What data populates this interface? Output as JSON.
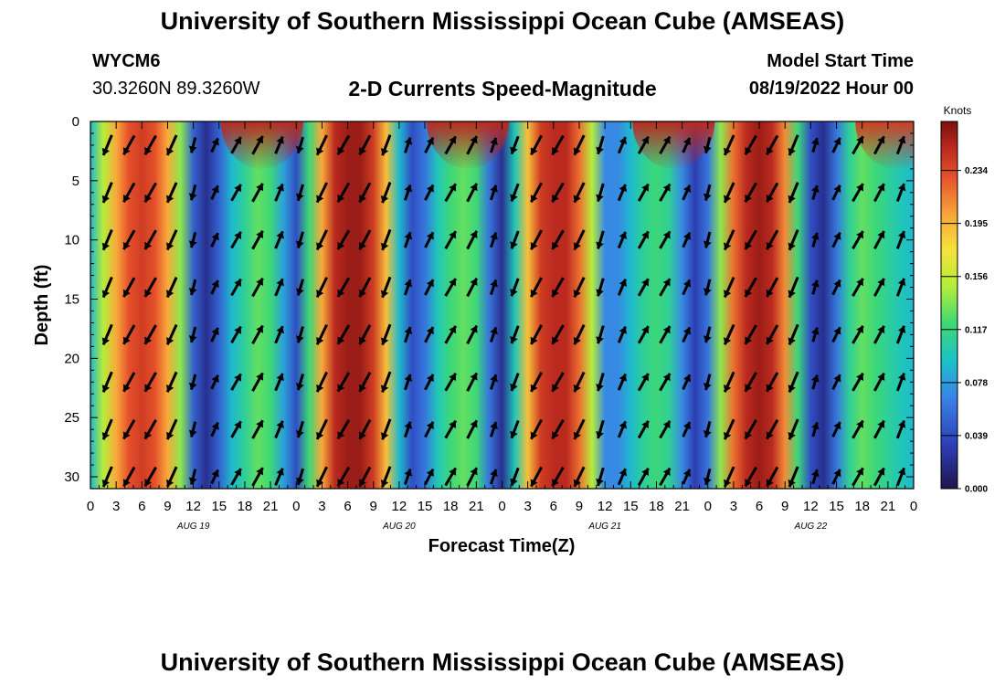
{
  "header": {
    "title": "University of Southern Mississippi Ocean Cube (AMSEAS)",
    "station_id": "WYCM6",
    "station_coords": "30.3260N  89.3260W",
    "model_start_label": "Model Start Time",
    "model_start_value": "08/19/2022 Hour 00"
  },
  "footer": {
    "title": "University of Southern Mississippi Ocean Cube (AMSEAS)"
  },
  "chart_data": {
    "type": "heatmap",
    "title": "2-D Currents Speed-Magnitude",
    "xlabel": "Forecast Time(Z)",
    "ylabel": "Depth (ft)",
    "x_range_hours": [
      0,
      96
    ],
    "y_range_ft": [
      0,
      31
    ],
    "x_tick_hours": [
      0,
      3,
      6,
      9,
      12,
      15,
      18,
      21,
      24,
      27,
      30,
      33,
      36,
      39,
      42,
      45,
      48,
      51,
      54,
      57,
      60,
      63,
      66,
      69,
      72,
      75,
      78,
      81,
      84,
      87,
      90,
      93,
      96
    ],
    "x_tick_labels": [
      "0",
      "3",
      "6",
      "9",
      "12",
      "15",
      "18",
      "21",
      "0",
      "3",
      "6",
      "9",
      "12",
      "15",
      "18",
      "21",
      "0",
      "3",
      "6",
      "9",
      "12",
      "15",
      "18",
      "21",
      "0",
      "3",
      "6",
      "9",
      "12",
      "15",
      "18",
      "21",
      "0"
    ],
    "date_labels": [
      {
        "hour": 12,
        "label": "AUG 19"
      },
      {
        "hour": 36,
        "label": "AUG 20"
      },
      {
        "hour": 60,
        "label": "AUG 21"
      },
      {
        "hour": 84,
        "label": "AUG 22"
      }
    ],
    "y_ticks": [
      0,
      5,
      10,
      15,
      20,
      25,
      30
    ],
    "colorbar": {
      "unit": "Knots",
      "range": [
        0.0,
        0.27
      ],
      "tick_values": [
        0.0,
        0.039,
        0.078,
        0.117,
        0.156,
        0.195,
        0.234
      ],
      "tick_labels": [
        "0.000",
        "0.039",
        "0.078",
        "0.117",
        "0.156",
        "0.195",
        "0.234"
      ]
    },
    "speed_profile_hours": [
      0,
      1.5,
      3,
      4.5,
      6,
      7.5,
      9,
      10.5,
      12,
      13.5,
      15,
      16.5,
      18,
      19.5,
      21,
      22.5,
      24,
      25.5,
      27,
      28.5,
      30,
      31.5,
      33,
      34.5,
      36,
      37.5,
      39,
      40.5,
      42,
      43.5,
      45,
      46.5,
      48,
      49.5,
      51,
      52.5,
      54,
      55.5,
      57,
      58.5,
      60,
      61.5,
      63,
      64.5,
      66,
      67.5,
      69,
      70.5,
      72,
      73.5,
      75,
      76.5,
      78,
      79.5,
      81,
      82.5,
      84,
      85.5,
      87,
      88.5,
      90,
      91.5,
      93,
      94.5,
      96
    ],
    "speed_profile_knots": [
      0.09,
      0.15,
      0.2,
      0.23,
      0.24,
      0.23,
      0.2,
      0.14,
      0.05,
      0.02,
      0.05,
      0.09,
      0.11,
      0.13,
      0.12,
      0.08,
      0.04,
      0.12,
      0.2,
      0.25,
      0.26,
      0.26,
      0.24,
      0.19,
      0.09,
      0.04,
      0.06,
      0.1,
      0.12,
      0.13,
      0.12,
      0.06,
      0.02,
      0.1,
      0.19,
      0.24,
      0.25,
      0.25,
      0.22,
      0.15,
      0.07,
      0.07,
      0.09,
      0.11,
      0.12,
      0.11,
      0.07,
      0.03,
      0.06,
      0.14,
      0.22,
      0.25,
      0.26,
      0.25,
      0.21,
      0.12,
      0.04,
      0.02,
      0.06,
      0.11,
      0.13,
      0.12,
      0.11,
      0.1,
      0.09
    ],
    "surface_maxima": [
      {
        "center_hour": 20,
        "speed_knots": 0.25
      },
      {
        "center_hour": 44,
        "speed_knots": 0.25
      },
      {
        "center_hour": 68,
        "speed_knots": 0.25
      },
      {
        "center_hour": 94,
        "speed_knots": 0.24
      }
    ],
    "arrow_times_hours": [
      2,
      4.5,
      7,
      9.5,
      12,
      14.5,
      17,
      19.5,
      22,
      24.5,
      27,
      29.5,
      32,
      34.5,
      37,
      39.5,
      42,
      44.5,
      47,
      49.5,
      52,
      54.5,
      57,
      59.5,
      62,
      64.5,
      67,
      69.5,
      72,
      74.5,
      77,
      79.5,
      82,
      84.5,
      87,
      89.5,
      92,
      94.5
    ],
    "arrow_depths_ft": [
      2,
      6,
      10,
      14,
      18,
      22,
      26,
      30
    ],
    "arrow_direction_pattern": "direction rotates with tidal cycle: southwestward during strong phases (hours ~3-10, 27-34, 51-58, 75-82), northeastward during moderate phases"
  }
}
